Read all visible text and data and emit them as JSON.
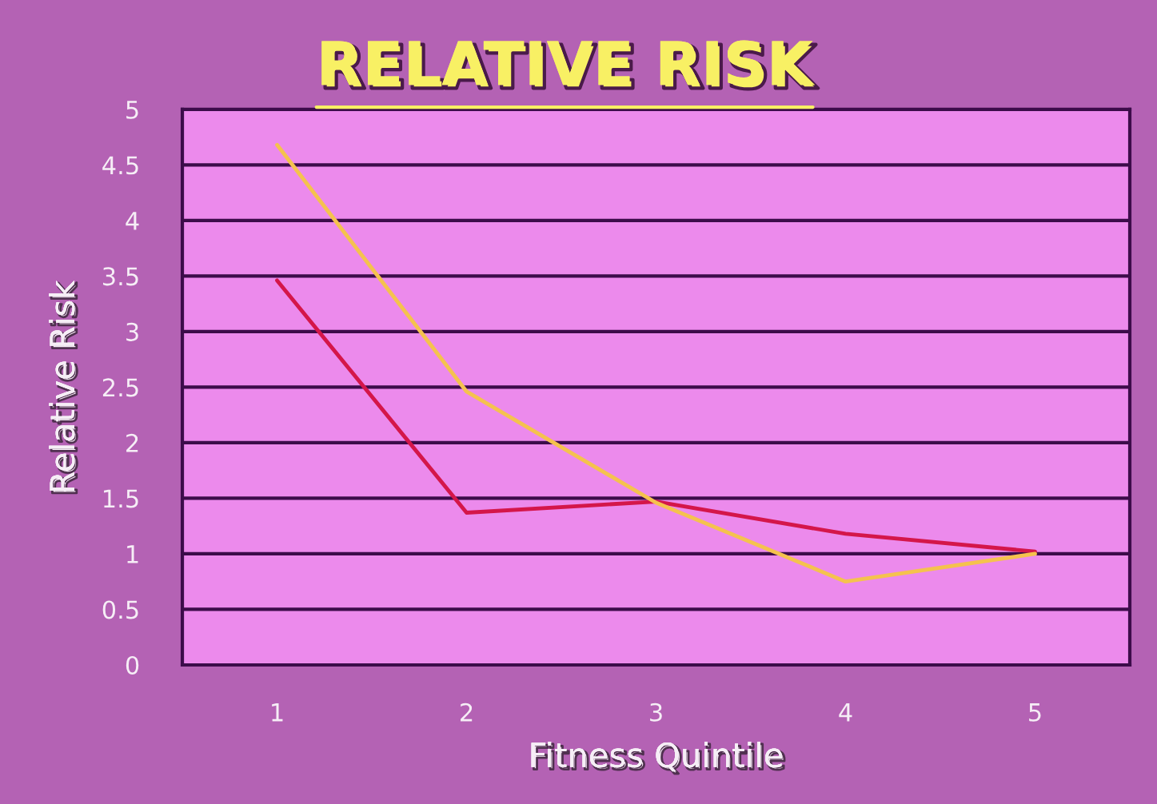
{
  "chart_data": {
    "type": "line",
    "title": "RELATIVE RISK",
    "xlabel": "Fitness Quintile",
    "ylabel": "Relative Risk",
    "categories": [
      "1",
      "2",
      "3",
      "4",
      "5"
    ],
    "series": [
      {
        "color": "#d4164a",
        "values": [
          3.46,
          1.37,
          1.47,
          1.18,
          1.02
        ]
      },
      {
        "color": "#f5c24e",
        "values": [
          4.68,
          2.46,
          1.46,
          0.75,
          1.0
        ]
      }
    ],
    "ylim": [
      0,
      5
    ],
    "yticks": [
      0,
      0.5,
      1,
      1.5,
      2,
      2.5,
      3,
      3.5,
      4,
      4.5,
      5
    ],
    "grid": "y",
    "line_style": "solid"
  }
}
